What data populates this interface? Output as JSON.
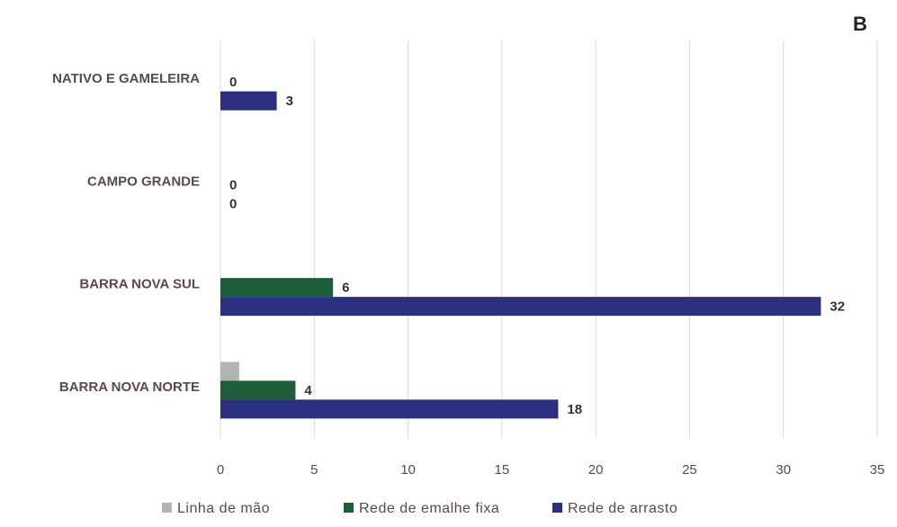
{
  "panel_label": "B",
  "chart_data": {
    "type": "bar",
    "orientation": "horizontal",
    "categories": [
      "BARRA NOVA NORTE",
      "BARRA NOVA SUL",
      "CAMPO GRANDE",
      "NATIVO E GAMELEIRA"
    ],
    "series": [
      {
        "name": "Linha de mão",
        "color": "#b3b3b3",
        "values": [
          1,
          null,
          null,
          null
        ]
      },
      {
        "name": "Rede de emalhe fixa",
        "color": "#1e5c3a",
        "values": [
          4,
          6,
          0,
          0
        ]
      },
      {
        "name": "Rede de arrasto",
        "color": "#2b2f7e",
        "values": [
          18,
          32,
          0,
          3
        ]
      }
    ],
    "data_labels": {
      "Rede de emalhe fixa": [
        "4",
        "6",
        "0",
        "0"
      ],
      "Rede de arrasto": [
        "18",
        "32",
        "0",
        "3"
      ]
    },
    "xlim": [
      0,
      35
    ],
    "xticks": [
      "0",
      "5",
      "10",
      "15",
      "20",
      "25",
      "30",
      "35"
    ],
    "grid": "vertical",
    "legend_position": "bottom",
    "title": "",
    "xlabel": "",
    "ylabel": ""
  }
}
